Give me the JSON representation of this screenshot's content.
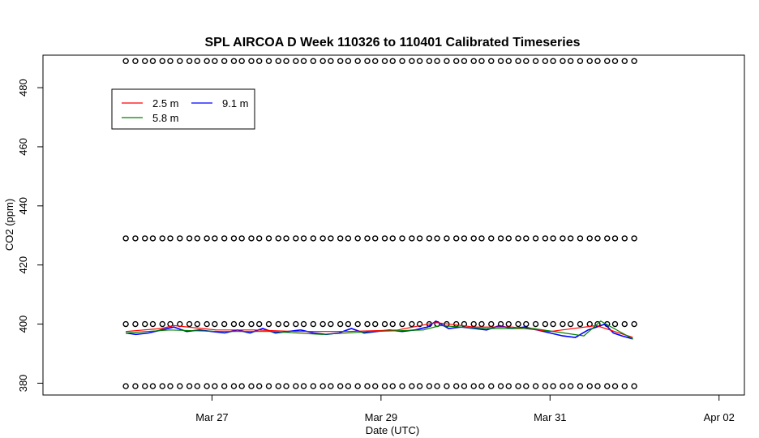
{
  "chart_data": {
    "type": "line",
    "title": "SPL AIRCOA D  Week 110326 to 110401  Calibrated Timeseries",
    "xlabel": "Date (UTC)",
    "ylabel": "CO2 (ppm)",
    "x_ticks": [
      {
        "label": "Mar 27",
        "day": 27.0
      },
      {
        "label": "Mar 29",
        "day": 29.0
      },
      {
        "label": "Mar 31",
        "day": 31.0
      },
      {
        "label": "Apr 02",
        "day": 33.0
      }
    ],
    "y_ticks": [
      380,
      400,
      420,
      440,
      460,
      480
    ],
    "xlim": [
      25.0,
      33.3
    ],
    "ylim": [
      376,
      491
    ],
    "legend": {
      "position": "top-left",
      "entries": [
        {
          "name": "2.5 m",
          "color": "#ff0000"
        },
        {
          "name": "5.8 m",
          "color": "#008000"
        },
        {
          "name": "9.1 m",
          "color": "#0000ff"
        }
      ]
    },
    "reference_levels": [
      489,
      429,
      400,
      379
    ],
    "reference_x_range": [
      25.98,
      31.98
    ],
    "series": [
      {
        "name": "9.1 m",
        "color": "#0000ff",
        "x": [
          25.98,
          26.1,
          26.25,
          26.4,
          26.55,
          26.7,
          26.85,
          27.0,
          27.15,
          27.3,
          27.45,
          27.6,
          27.75,
          27.9,
          28.05,
          28.2,
          28.35,
          28.5,
          28.65,
          28.8,
          28.95,
          29.1,
          29.25,
          29.4,
          29.55,
          29.65,
          29.8,
          29.95,
          30.1,
          30.25,
          30.4,
          30.55,
          30.7,
          30.85,
          31.0,
          31.15,
          31.3,
          31.45,
          31.55,
          31.65,
          31.75,
          31.85,
          31.98
        ],
        "y": [
          397,
          396.5,
          397,
          398,
          399,
          397.5,
          398,
          397.5,
          397,
          398,
          397,
          398.5,
          397,
          397.5,
          398,
          397,
          396.5,
          397,
          398.5,
          397,
          397.5,
          398,
          397.5,
          398,
          399,
          401,
          398.5,
          399,
          398.5,
          398,
          399.5,
          398.5,
          399,
          398,
          397,
          396,
          395.5,
          398,
          399,
          400,
          397,
          396,
          395
        ]
      },
      {
        "name": "2.5 m",
        "color": "#ff0000",
        "x": [
          25.98,
          26.4,
          26.55,
          27.05,
          27.5,
          28.0,
          28.6,
          29.2,
          29.65,
          30.1,
          30.55,
          31.0,
          31.55,
          31.98
        ],
        "y": [
          397.5,
          398.5,
          399.5,
          398,
          398,
          397.5,
          397.5,
          398,
          400.5,
          399,
          399,
          397.5,
          399.5,
          395.5
        ]
      },
      {
        "name": "5.8 m",
        "color": "#008000",
        "x": [
          25.98,
          26.5,
          27.1,
          27.7,
          28.3,
          28.9,
          29.5,
          29.7,
          30.2,
          30.8,
          31.4,
          31.6,
          31.98
        ],
        "y": [
          397,
          398,
          397.5,
          397.5,
          396.5,
          397.5,
          398,
          399.5,
          398.5,
          398.5,
          396,
          401,
          395
        ]
      }
    ]
  }
}
